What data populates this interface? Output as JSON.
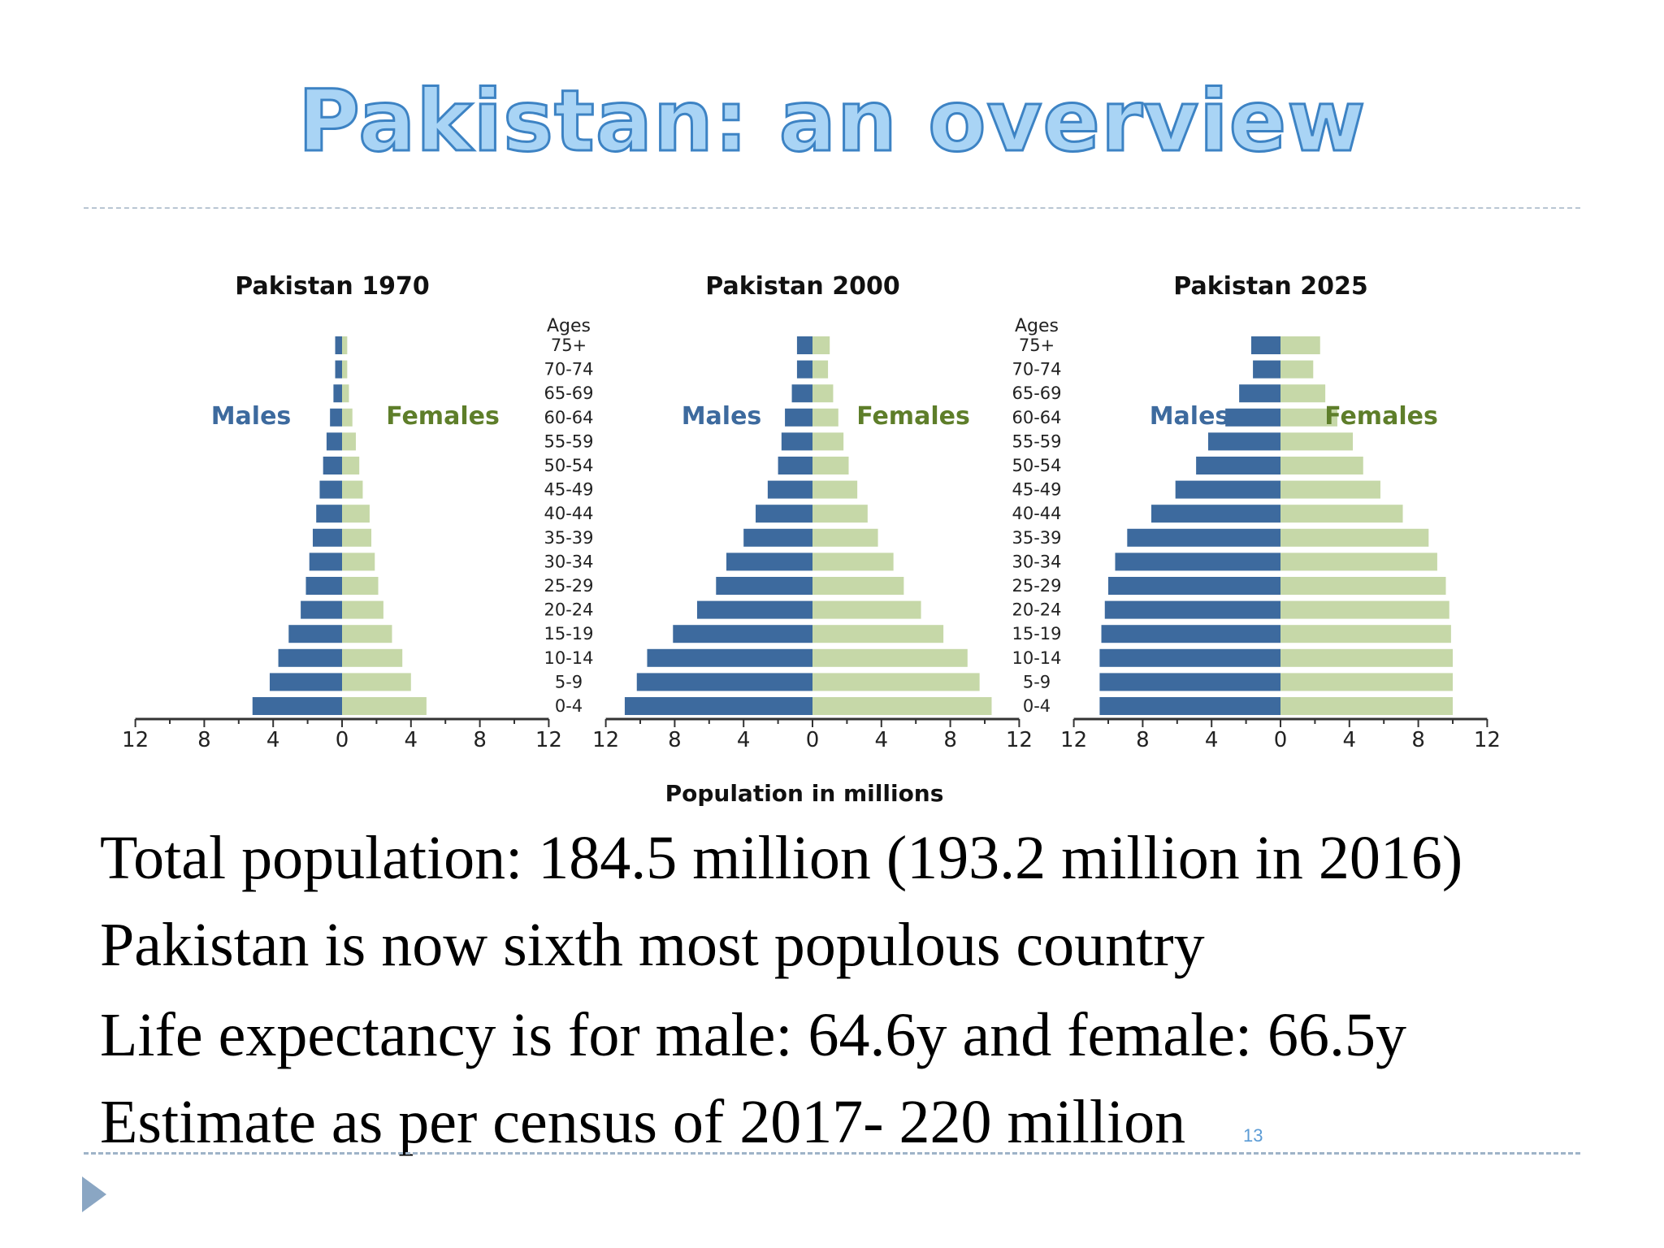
{
  "slide": {
    "title": "Pakistan: an overview",
    "page_number": "13",
    "bullets": [
      "Total population: 184.5 million (193.2 million in 2016)",
      "Pakistan is now sixth most populous country",
      "Life expectancy is for male: 64.6y  and female: 66.5y",
      "Estimate as per census of 2017- 220 million"
    ]
  },
  "colors": {
    "males": "#3d6a9e",
    "females": "#c6d8a8",
    "males_label": "#3d6a9e",
    "females_label": "#5e7e2a",
    "title_fill": "#a9d4f5",
    "title_stroke": "#3d83c4"
  },
  "chart_data": [
    {
      "type": "bar",
      "orientation": "population-pyramid",
      "title": "Pakistan 1970",
      "xlabel": "",
      "categories": [
        "0-4",
        "5-9",
        "10-14",
        "15-19",
        "20-24",
        "25-29",
        "30-34",
        "35-39",
        "40-44",
        "45-49",
        "50-54",
        "55-59",
        "60-64",
        "65-69",
        "70-74",
        "75+"
      ],
      "series": [
        {
          "name": "Males",
          "values": [
            5.2,
            4.2,
            3.7,
            3.1,
            2.4,
            2.1,
            1.9,
            1.7,
            1.5,
            1.3,
            1.1,
            0.9,
            0.7,
            0.5,
            0.4,
            0.4
          ]
        },
        {
          "name": "Females",
          "values": [
            4.9,
            4.0,
            3.5,
            2.9,
            2.4,
            2.1,
            1.9,
            1.7,
            1.6,
            1.2,
            1.0,
            0.8,
            0.6,
            0.4,
            0.3,
            0.3
          ]
        }
      ],
      "xlim": [
        -12,
        12
      ],
      "xticks": [
        "12",
        "8",
        "4",
        "0",
        "4",
        "8",
        "12"
      ],
      "legend": "inside"
    },
    {
      "type": "bar",
      "orientation": "population-pyramid",
      "title": "Pakistan 2000",
      "xlabel": "Population in millions",
      "age_axis_label": "Ages",
      "categories": [
        "0-4",
        "5-9",
        "10-14",
        "15-19",
        "20-24",
        "25-29",
        "30-34",
        "35-39",
        "40-44",
        "45-49",
        "50-54",
        "55-59",
        "60-64",
        "65-69",
        "70-74",
        "75+"
      ],
      "series": [
        {
          "name": "Males",
          "values": [
            10.9,
            10.2,
            9.6,
            8.1,
            6.7,
            5.6,
            5.0,
            4.0,
            3.3,
            2.6,
            2.0,
            1.8,
            1.6,
            1.2,
            0.9,
            0.9
          ]
        },
        {
          "name": "Females",
          "values": [
            10.4,
            9.7,
            9.0,
            7.6,
            6.3,
            5.3,
            4.7,
            3.8,
            3.2,
            2.6,
            2.1,
            1.8,
            1.5,
            1.2,
            0.9,
            1.0
          ]
        }
      ],
      "xlim": [
        -12,
        12
      ],
      "xticks": [
        "12",
        "8",
        "4",
        "0",
        "4",
        "8",
        "12"
      ],
      "legend": "inside"
    },
    {
      "type": "bar",
      "orientation": "population-pyramid",
      "title": "Pakistan 2025",
      "xlabel": "",
      "age_axis_label": "Ages",
      "categories": [
        "0-4",
        "5-9",
        "10-14",
        "15-19",
        "20-24",
        "25-29",
        "30-34",
        "35-39",
        "40-44",
        "45-49",
        "50-54",
        "55-59",
        "60-64",
        "65-69",
        "70-74",
        "75+"
      ],
      "series": [
        {
          "name": "Males",
          "values": [
            10.5,
            10.5,
            10.5,
            10.4,
            10.2,
            10.0,
            9.6,
            8.9,
            7.5,
            6.1,
            4.9,
            4.2,
            3.2,
            2.4,
            1.6,
            1.7
          ]
        },
        {
          "name": "Females",
          "values": [
            10.0,
            10.0,
            10.0,
            9.9,
            9.8,
            9.6,
            9.1,
            8.6,
            7.1,
            5.8,
            4.8,
            4.2,
            3.3,
            2.6,
            1.9,
            2.3
          ]
        }
      ],
      "xlim": [
        -12,
        12
      ],
      "xticks": [
        "12",
        "8",
        "4",
        "0",
        "4",
        "8",
        "12"
      ],
      "legend": "inside"
    }
  ]
}
